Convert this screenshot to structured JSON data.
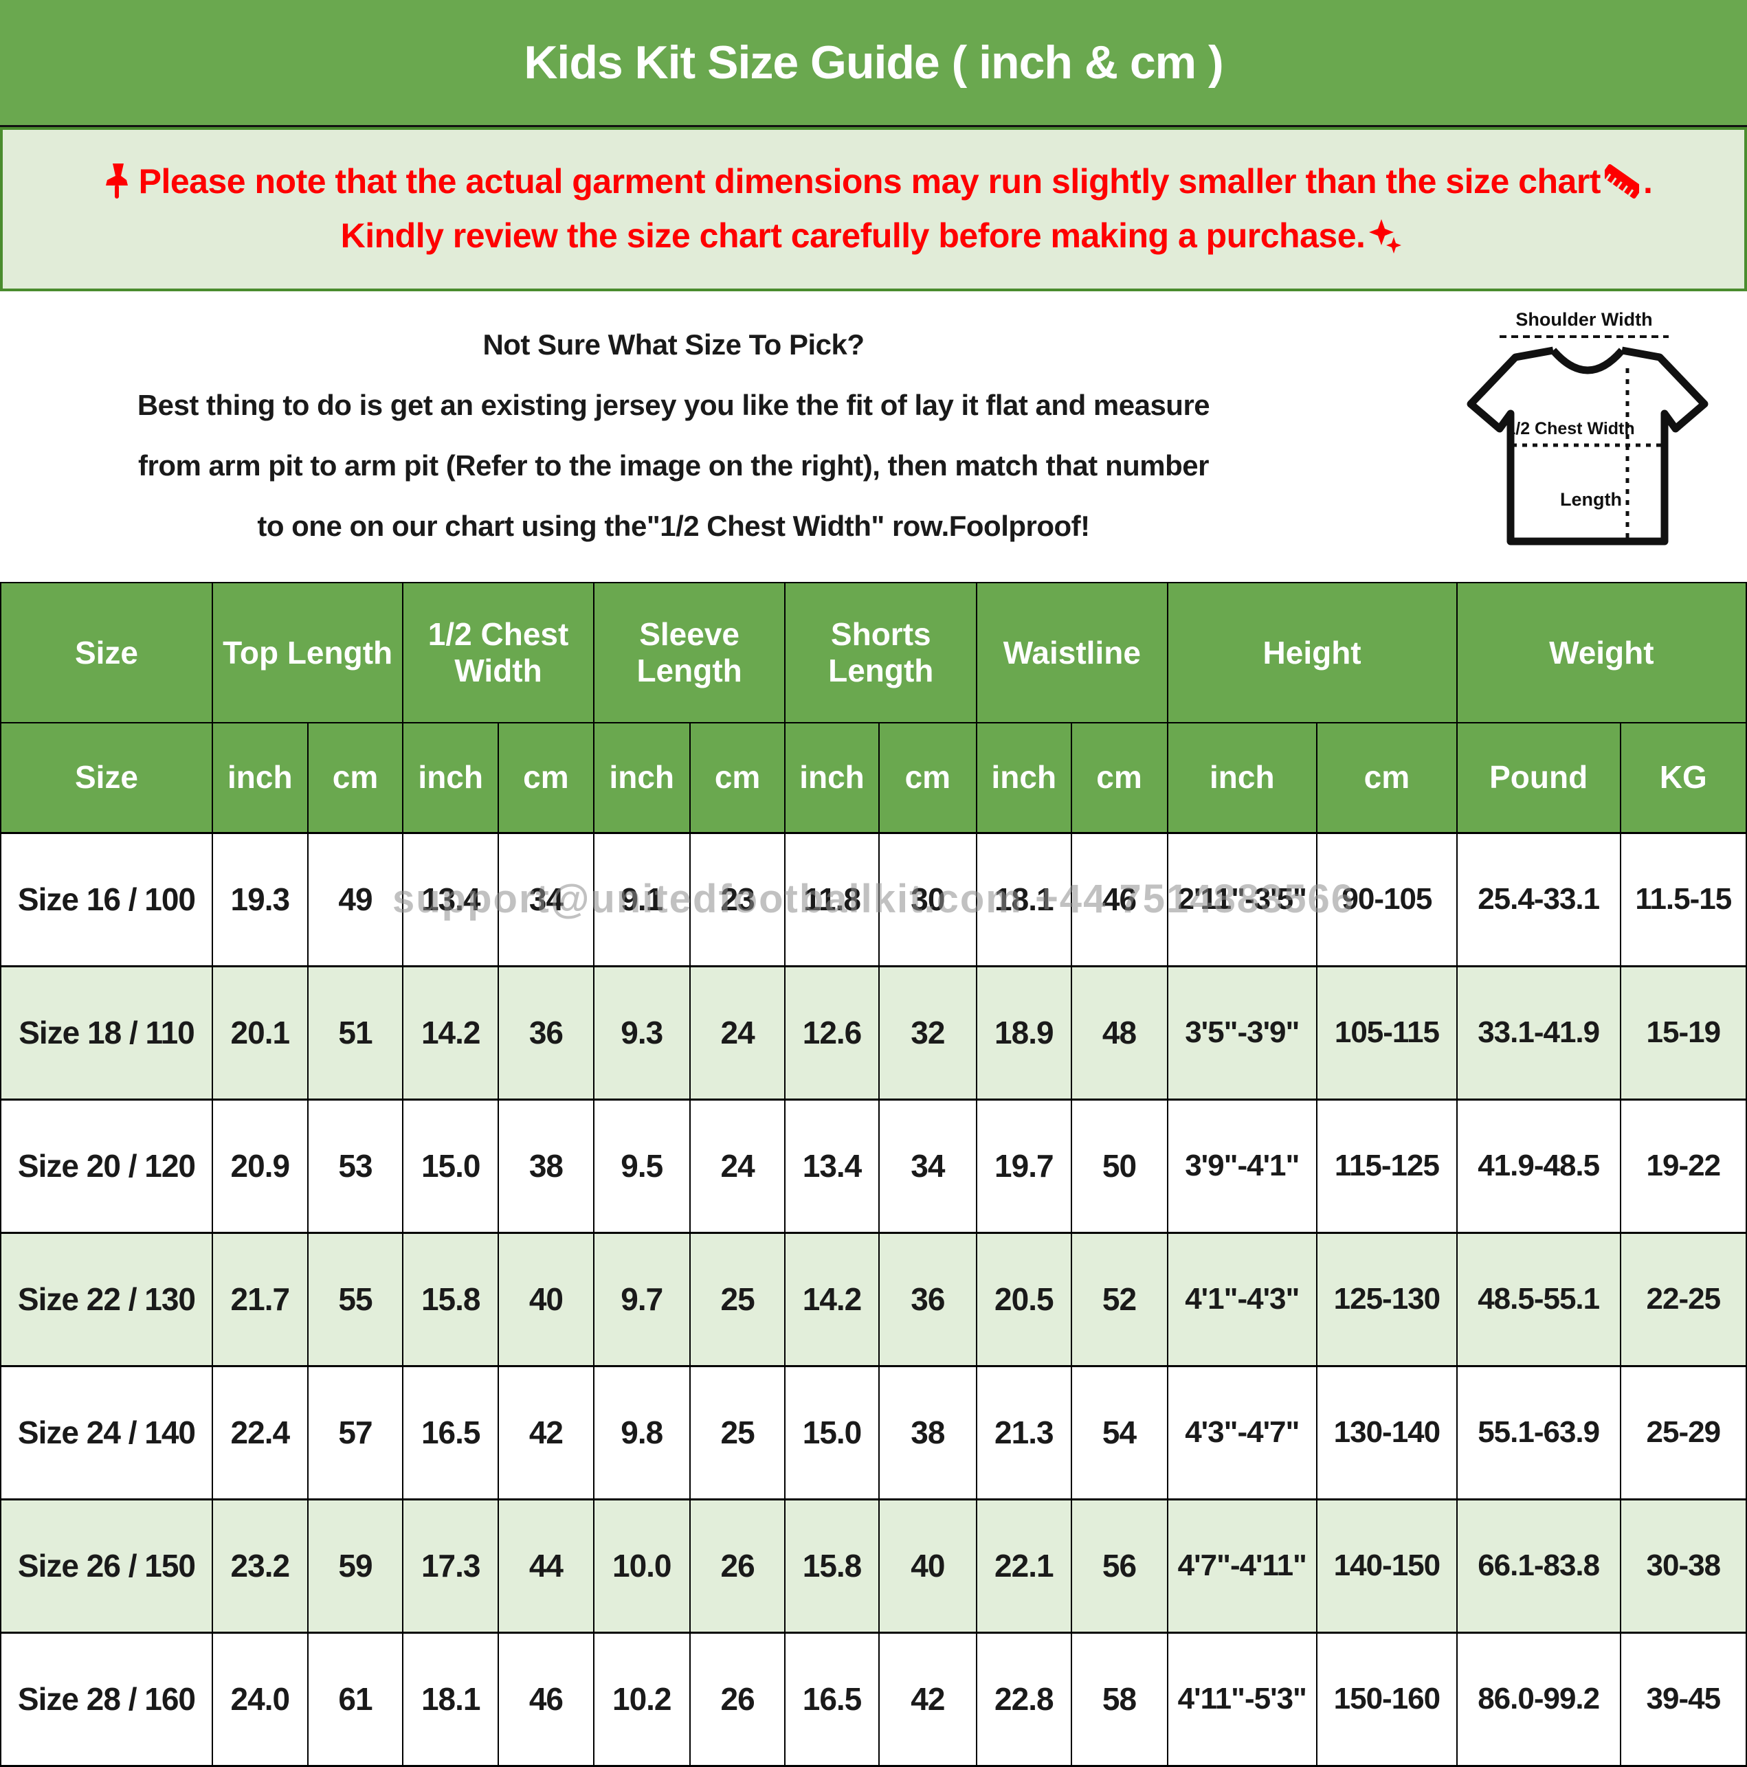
{
  "title": "Kids Kit Size Guide ( inch & cm )",
  "notice": {
    "pin_icon": "pushpin-icon",
    "ruler_icon": "ruler-icon",
    "sparkles_icon": "sparkles-icon",
    "line1_pre": "Please note that the actual garment dimensions may run slightly smaller than the size chart ",
    "line1_post": " .",
    "line2": "Kindly review the size chart carefully before making a purchase."
  },
  "info": {
    "heading": "Not Sure What Size To Pick?",
    "line1": "Best thing to do is get an existing jersey you like the fit of lay it flat and measure",
    "line2": "from arm pit to arm pit (Refer to the image on the right), then match that number",
    "line3": "to one on our chart using the\"1/2 Chest Width\" row.Foolproof!"
  },
  "diagram": {
    "shoulder_label": "Shoulder Width",
    "chest_label": "1/2 Chest Width",
    "length_label": "Length"
  },
  "watermark": "support@unitedfootballkit.com +44 7514883566",
  "table": {
    "groups": [
      {
        "label": "Size",
        "colspan": 1
      },
      {
        "label": "Top Length",
        "colspan": 2
      },
      {
        "label": "1/2 Chest Width",
        "colspan": 2
      },
      {
        "label": "Sleeve Length",
        "colspan": 2
      },
      {
        "label": "Shorts Length",
        "colspan": 2
      },
      {
        "label": "Waistline",
        "colspan": 2
      },
      {
        "label": "Height",
        "colspan": 2
      },
      {
        "label": "Weight",
        "colspan": 2
      }
    ],
    "subheaders": [
      "Size",
      "inch",
      "cm",
      "inch",
      "cm",
      "inch",
      "cm",
      "inch",
      "cm",
      "inch",
      "cm",
      "inch",
      "cm",
      "Pound",
      "KG"
    ],
    "rows": [
      [
        "Size 16 / 100",
        "19.3",
        "49",
        "13.4",
        "34",
        "9.1",
        "23",
        "11.8",
        "30",
        "18.1",
        "46",
        "2'11\"-3'5\"",
        "90-105",
        "25.4-33.1",
        "11.5-15"
      ],
      [
        "Size 18 / 110",
        "20.1",
        "51",
        "14.2",
        "36",
        "9.3",
        "24",
        "12.6",
        "32",
        "18.9",
        "48",
        "3'5\"-3'9\"",
        "105-115",
        "33.1-41.9",
        "15-19"
      ],
      [
        "Size 20 / 120",
        "20.9",
        "53",
        "15.0",
        "38",
        "9.5",
        "24",
        "13.4",
        "34",
        "19.7",
        "50",
        "3'9\"-4'1\"",
        "115-125",
        "41.9-48.5",
        "19-22"
      ],
      [
        "Size 22 / 130",
        "21.7",
        "55",
        "15.8",
        "40",
        "9.7",
        "25",
        "14.2",
        "36",
        "20.5",
        "52",
        "4'1\"-4'3\"",
        "125-130",
        "48.5-55.1",
        "22-25"
      ],
      [
        "Size 24 / 140",
        "22.4",
        "57",
        "16.5",
        "42",
        "9.8",
        "25",
        "15.0",
        "38",
        "21.3",
        "54",
        "4'3\"-4'7\"",
        "130-140",
        "55.1-63.9",
        "25-29"
      ],
      [
        "Size 26 / 150",
        "23.2",
        "59",
        "17.3",
        "44",
        "10.0",
        "26",
        "15.8",
        "40",
        "22.1",
        "56",
        "4'7\"-4'11\"",
        "140-150",
        "66.1-83.8",
        "30-38"
      ],
      [
        "Size 28 / 160",
        "24.0",
        "61",
        "18.1",
        "46",
        "10.2",
        "26",
        "16.5",
        "42",
        "22.8",
        "58",
        "4'11\"-5'3\"",
        "150-160",
        "86.0-99.2",
        "39-45"
      ]
    ]
  },
  "colors": {
    "green": "#6aa84f",
    "light_green": "#e2eeda",
    "notice_bg": "#e1ecd8",
    "red": "#fe0000"
  }
}
